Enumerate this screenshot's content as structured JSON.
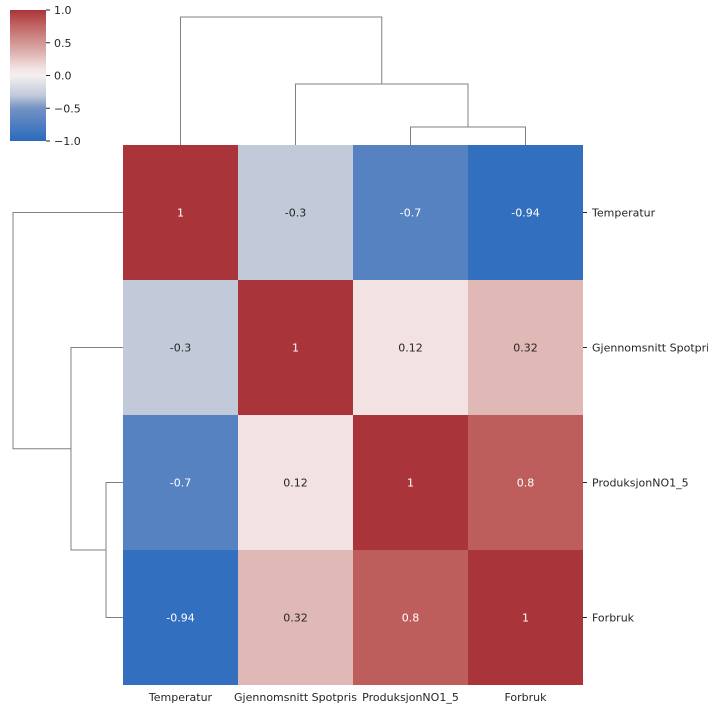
{
  "chart_data": {
    "type": "heatmap",
    "title": "",
    "xlabel": "",
    "ylabel": "",
    "variant": "clustermap",
    "colormap": "vlag",
    "vmin": -1.0,
    "vmax": 1.0,
    "x_labels": [
      "Temperatur",
      "Gjennomsnitt Spotpris",
      "ProduksjonNO1_5",
      "Forbruk"
    ],
    "y_labels": [
      "Temperatur",
      "Gjennomsnitt Spotpris",
      "ProduksjonNO1_5",
      "Forbruk"
    ],
    "values": [
      [
        1,
        -0.3,
        -0.7,
        -0.94
      ],
      [
        -0.3,
        1,
        0.12,
        0.32
      ],
      [
        -0.7,
        0.12,
        1,
        0.8
      ],
      [
        -0.94,
        0.32,
        0.8,
        1
      ]
    ],
    "cell_text": [
      [
        "1",
        "-0.3",
        "-0.7",
        "-0.94"
      ],
      [
        "-0.3",
        "1",
        "0.12",
        "0.32"
      ],
      [
        "-0.7",
        "0.12",
        "1",
        "0.8"
      ],
      [
        "-0.94",
        "0.32",
        "0.8",
        "1"
      ]
    ],
    "colorbar": {
      "ticks": [
        1.0,
        0.5,
        0.0,
        -0.5,
        -1.0
      ],
      "tick_labels": [
        "1.0",
        "0.5",
        "0.0",
        "−0.5",
        "−1.0"
      ]
    },
    "dendrogram_top": [
      {
        "a": "ProduksjonNO1_5",
        "b": "Forbruk"
      },
      {
        "a": "Gjennomsnitt Spotpris",
        "b": "ProduksjonNO1_5 + Forbruk"
      },
      {
        "a": "Temperatur",
        "b": "Gjennomsnitt Spotpris + ProduksjonNO1_5 + Forbruk"
      }
    ],
    "dendrogram_left": [
      {
        "a": "ProduksjonNO1_5",
        "b": "Forbruk"
      },
      {
        "a": "Gjennomsnitt Spotpris",
        "b": "ProduksjonNO1_5 + Forbruk"
      },
      {
        "a": "Temperatur",
        "b": "Gjennomsnitt Spotpris + ProduksjonNO1_5 + Forbruk"
      }
    ],
    "grid": false
  }
}
